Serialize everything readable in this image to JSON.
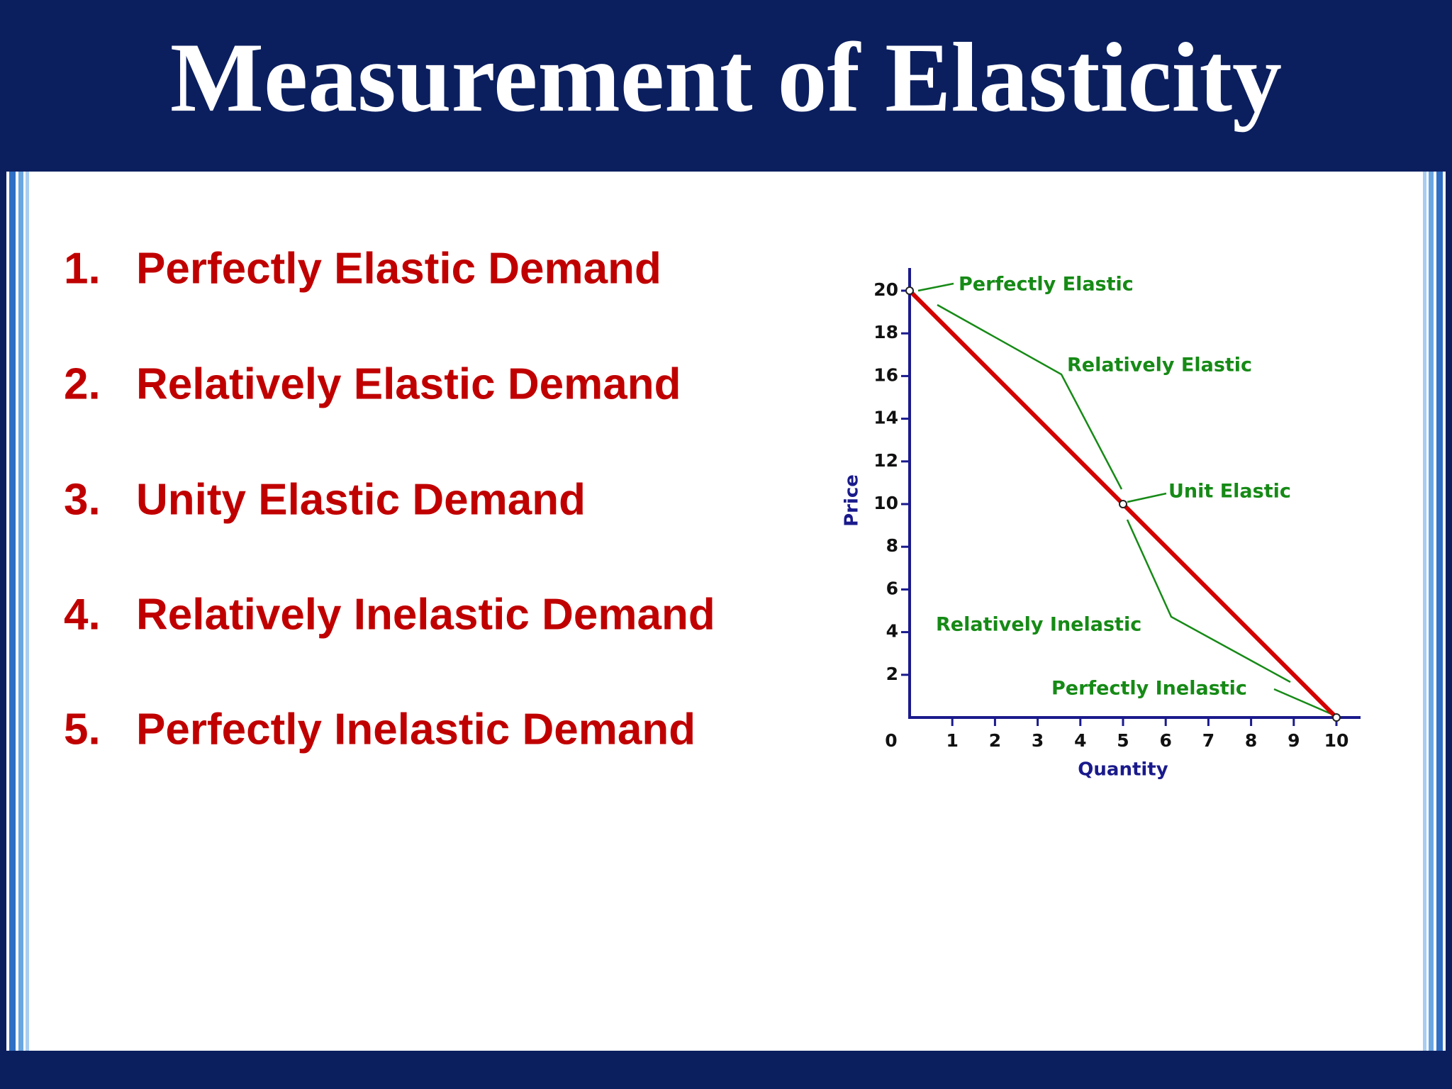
{
  "header": {
    "title": "Measurement of Elasticity"
  },
  "list": [
    {
      "number": "1.",
      "text": "Perfectly Elastic Demand"
    },
    {
      "number": "2.",
      "text": "Relatively  Elastic Demand"
    },
    {
      "number": "3.",
      "text": "Unity Elastic Demand"
    },
    {
      "number": "4.",
      "text": "Relatively Inelastic Demand"
    },
    {
      "number": "5.",
      "text": "Perfectly Inelastic Demand"
    }
  ],
  "chart_data": {
    "type": "line",
    "x_label": "Quantity",
    "y_label": "Price",
    "x": [
      0,
      5,
      10
    ],
    "series": [
      {
        "color": "#d40000",
        "values": [
          20,
          10,
          0
        ]
      }
    ],
    "xlim": [
      0,
      10
    ],
    "ylim": [
      0,
      20
    ],
    "xticks": [
      0,
      1,
      2,
      3,
      4,
      5,
      6,
      7,
      8,
      9,
      10
    ],
    "yticks": [
      2,
      4,
      6,
      8,
      10,
      12,
      14,
      16,
      18,
      20
    ],
    "annotations": [
      "Perfectly Elastic",
      "Relatively Elastic",
      "Unit Elastic",
      "Relatively Inelastic",
      "Perfectly Inelastic"
    ],
    "annotation_color": "#168a16"
  }
}
